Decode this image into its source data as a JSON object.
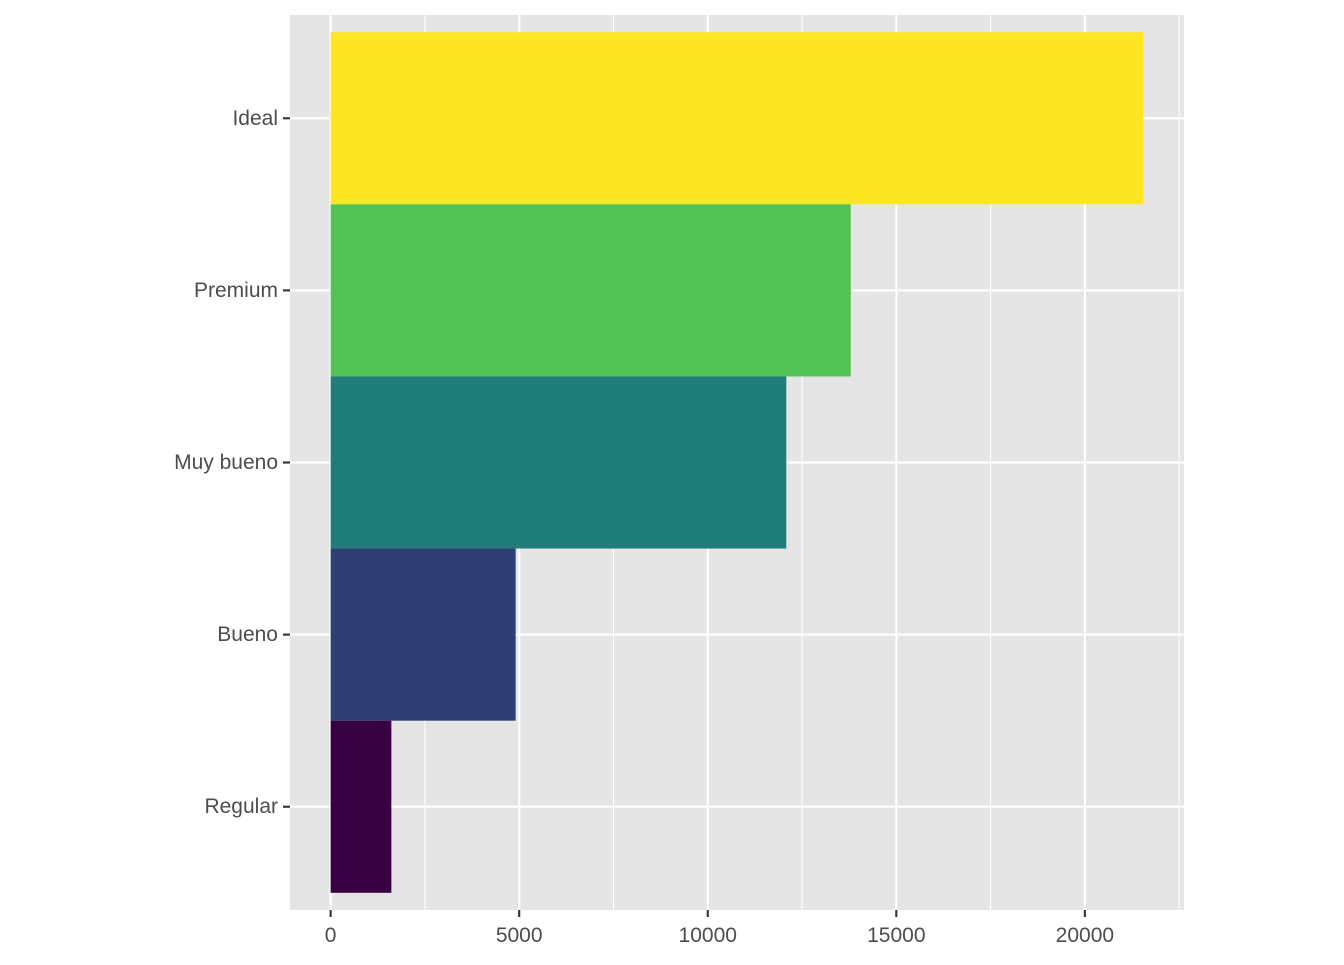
{
  "chart_data": {
    "type": "bar",
    "orientation": "horizontal",
    "categories": [
      "Ideal",
      "Premium",
      "Muy bueno",
      "Bueno",
      "Regular"
    ],
    "values": [
      21551,
      13791,
      12082,
      4906,
      1610
    ],
    "colors": [
      "#FDE725",
      "#53C255",
      "#1F7E7A",
      "#2F3F76",
      "#360042"
    ],
    "x_ticks": [
      0,
      5000,
      10000,
      15000,
      20000
    ],
    "x_tick_labels": [
      "0",
      "5000",
      "10000",
      "15000",
      "20000"
    ],
    "xlim": [
      -1077.55,
      22628.55
    ],
    "title": "",
    "xlabel": "",
    "ylabel": "",
    "grid": true,
    "legend": "none",
    "panel_background": "#E5E5E5",
    "grid_color": "#FFFFFF",
    "axis_text_color": "#4D4D4D",
    "tick_color": "#333333"
  }
}
